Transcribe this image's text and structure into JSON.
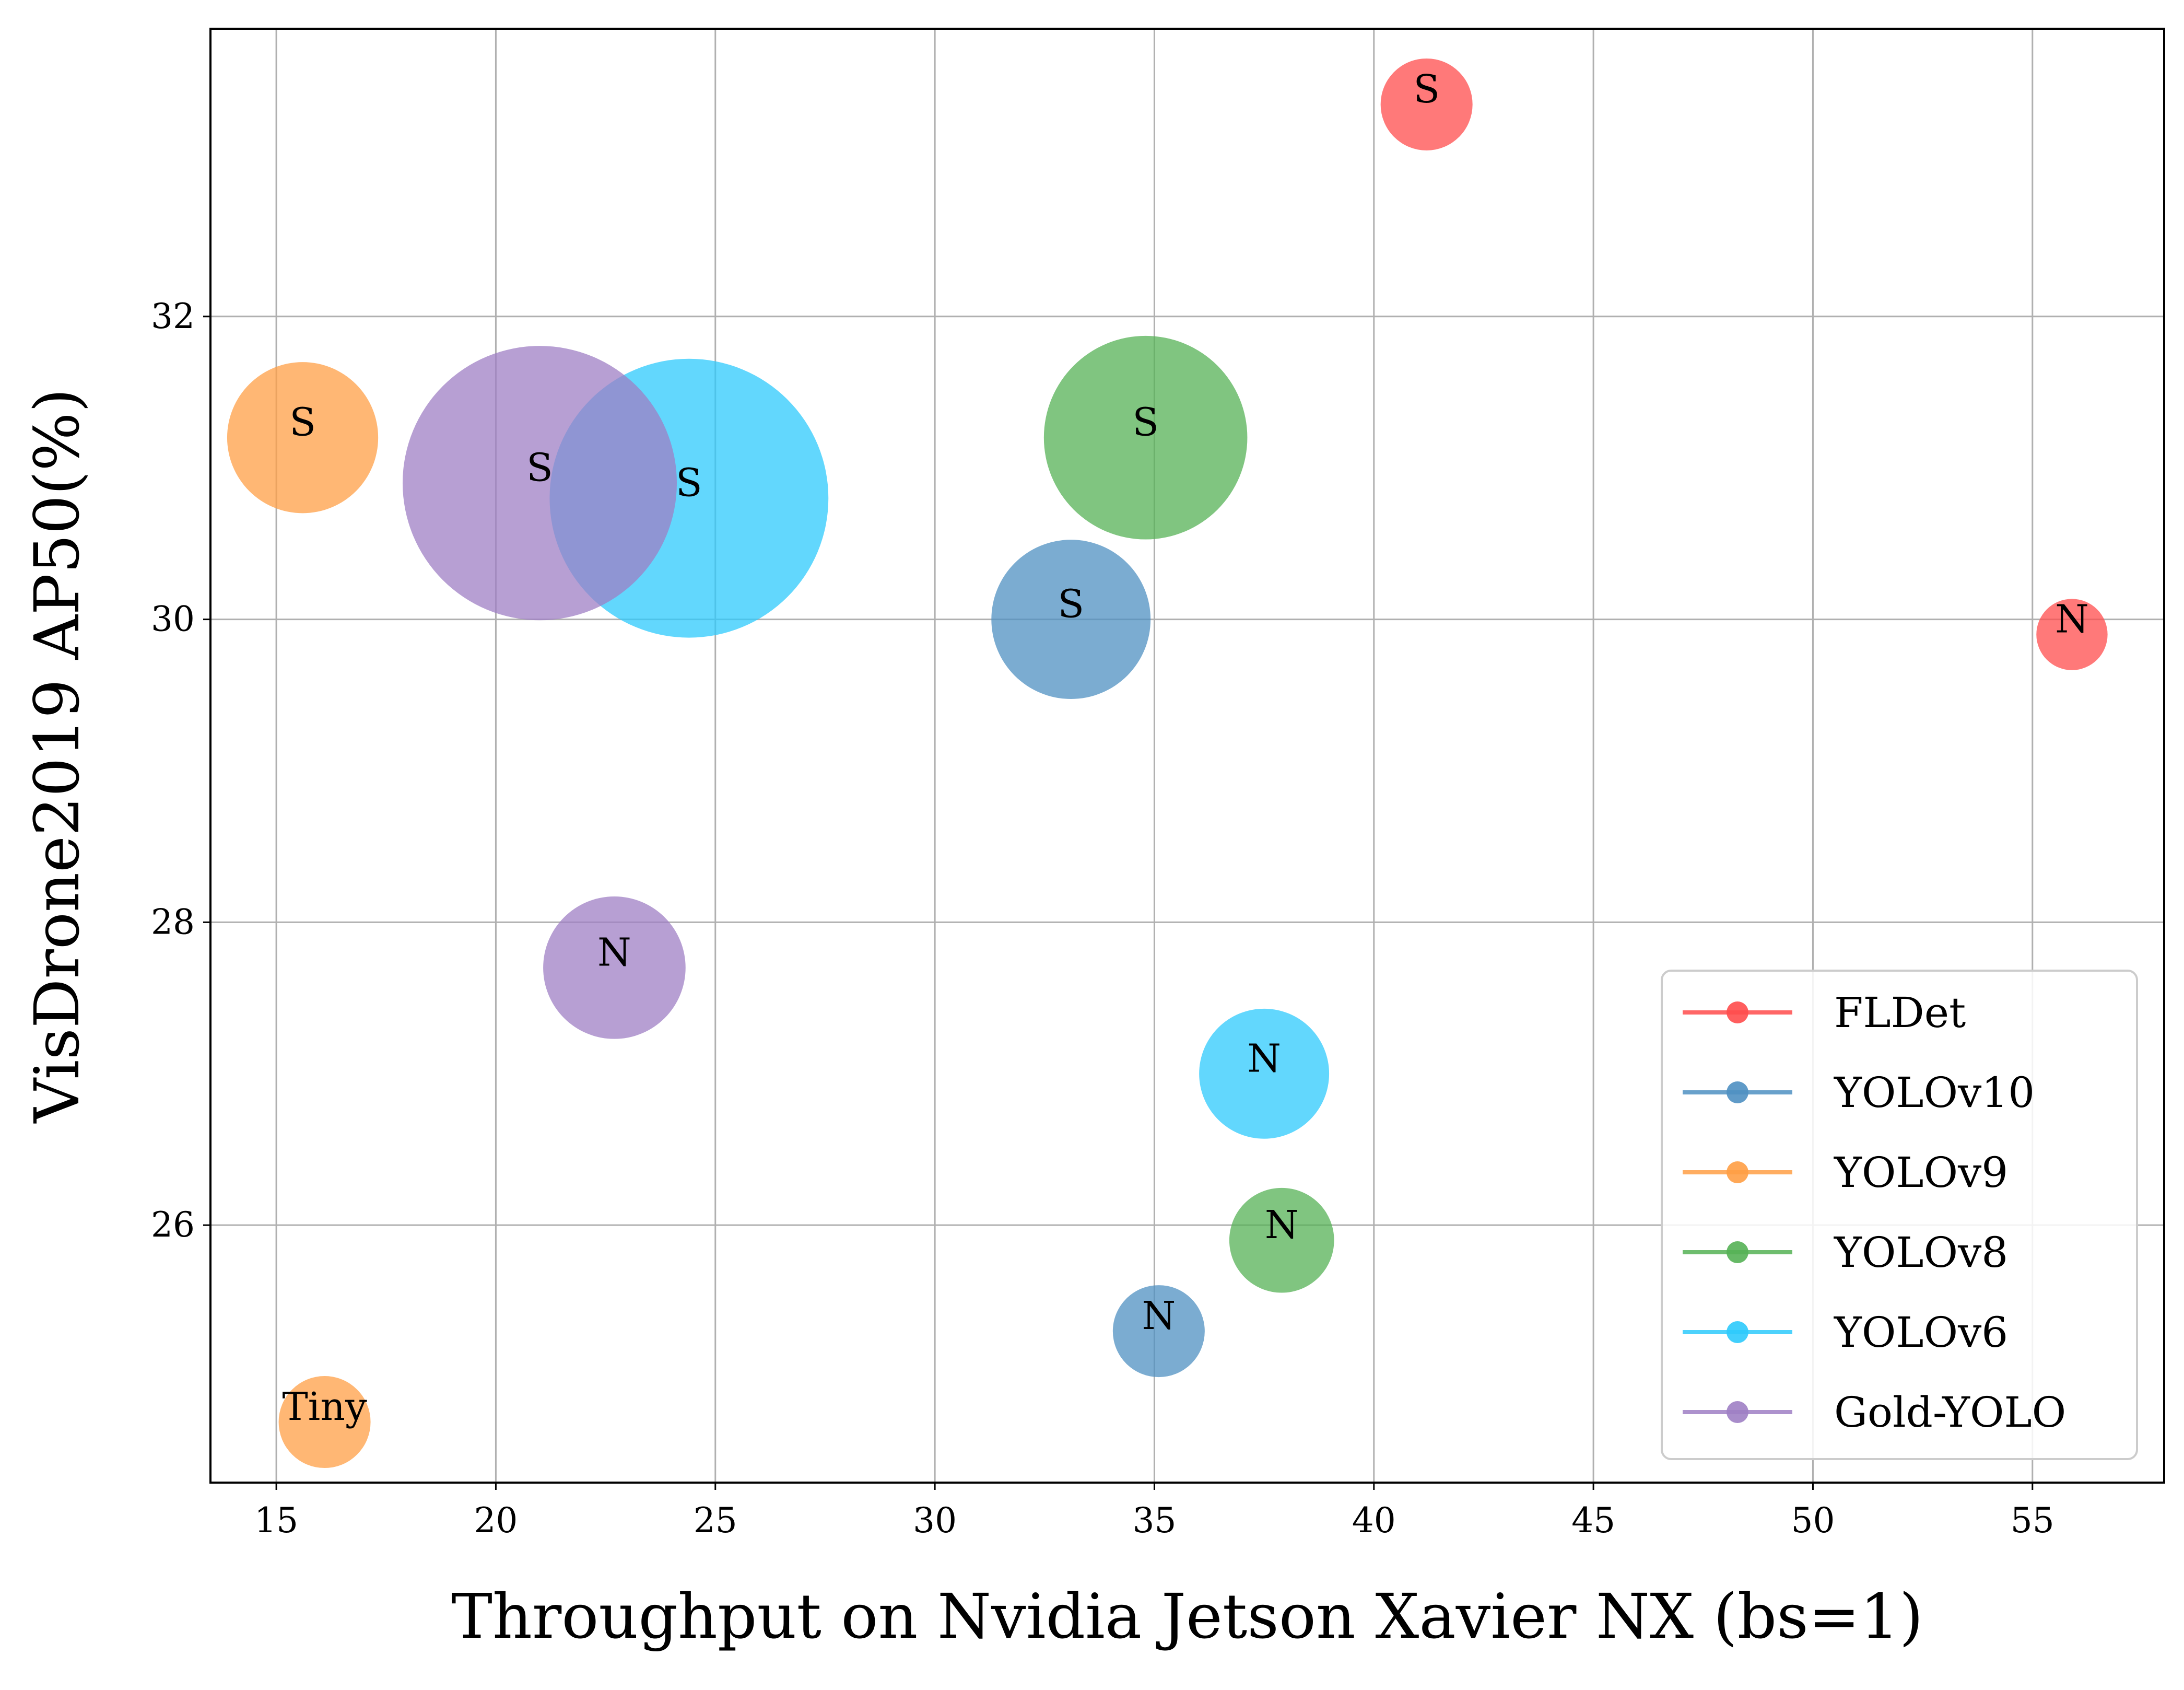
{
  "chart_data": {
    "type": "scatter",
    "subtype": "bubble",
    "title": "",
    "xlabel": "Throughput on Nvidia Jetson Xavier NX (bs=1)",
    "ylabel": "VisDrone2019 AP50(%)",
    "xlim": [
      13.5,
      58
    ],
    "ylim": [
      24.3,
      33.9
    ],
    "xticks": [
      15,
      20,
      25,
      30,
      35,
      40,
      45,
      50,
      55
    ],
    "yticks": [
      26,
      28,
      30,
      32
    ],
    "grid": true,
    "legend_position": "bottom-right",
    "series": [
      {
        "name": "FLDet",
        "color": "#ff4c4c",
        "points": [
          {
            "x": 41.2,
            "y": 33.4,
            "size": 1.0,
            "label": "S"
          },
          {
            "x": 55.9,
            "y": 29.9,
            "size": 0.6,
            "label": "N"
          }
        ]
      },
      {
        "name": "YOLOv10",
        "color": "#4f90c2",
        "points": [
          {
            "x": 33.1,
            "y": 30.0,
            "size": 3.0,
            "label": "S"
          },
          {
            "x": 35.1,
            "y": 25.3,
            "size": 1.0,
            "label": "N"
          }
        ]
      },
      {
        "name": "YOLOv9",
        "color": "#ff9f45",
        "points": [
          {
            "x": 15.6,
            "y": 31.2,
            "size": 2.7,
            "label": "S"
          },
          {
            "x": 16.1,
            "y": 24.7,
            "size": 1.0,
            "label": "Tiny"
          }
        ]
      },
      {
        "name": "YOLOv8",
        "color": "#55b155",
        "points": [
          {
            "x": 34.8,
            "y": 31.2,
            "size": 4.9,
            "label": "S"
          },
          {
            "x": 37.9,
            "y": 25.9,
            "size": 1.3,
            "label": "N"
          }
        ]
      },
      {
        "name": "YOLOv6",
        "color": "#2ecafc",
        "points": [
          {
            "x": 24.4,
            "y": 30.8,
            "size": 9.2,
            "label": "S"
          },
          {
            "x": 37.5,
            "y": 27.0,
            "size": 2.0,
            "label": "N"
          }
        ]
      },
      {
        "name": "Gold-YOLO",
        "color": "#9f7fc4",
        "points": [
          {
            "x": 21.0,
            "y": 30.9,
            "size": 8.9,
            "label": "S"
          },
          {
            "x": 22.7,
            "y": 27.7,
            "size": 2.4,
            "label": "N"
          }
        ]
      }
    ]
  }
}
